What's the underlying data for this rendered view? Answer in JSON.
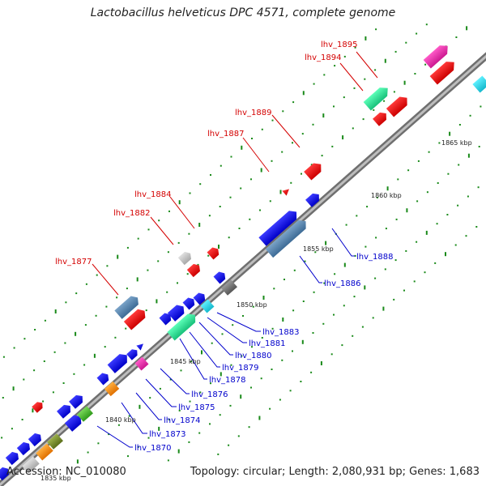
{
  "title": "Lactobacillus helveticus DPC 4571, complete genome",
  "footer": {
    "accession": "Accession: NC_010080",
    "summary": "Topology: circular; Length: 2,080,931 bp; Genes: 1,683"
  },
  "colors": {
    "backbone": "#8c8c8c",
    "top_strand_label": "#d40000",
    "bottom_strand_label": "#0000cc",
    "tick": "#1a8a1a"
  },
  "ticks": [
    "1840 kbp",
    "1845 kbp",
    "1850 kbp",
    "1855 kbp",
    "1860 kbp",
    "1865 kbp"
  ],
  "partial_tick": "1835 kbp",
  "top_labels": [
    "lhv_1877",
    "lhv_1882",
    "lhv_1884",
    "lhv_1887",
    "lhv_1889",
    "lhv_1894",
    "lhv_1895"
  ],
  "bottom_labels": [
    "lhv_1870",
    "lhv_1873",
    "lhv_1874",
    "lhv_1875",
    "lhv_1876",
    "lhv_1878",
    "lhv_1879",
    "lhv_1880",
    "lhv_1881",
    "lhv_1883",
    "lhv_1886",
    "lhv_1888"
  ]
}
